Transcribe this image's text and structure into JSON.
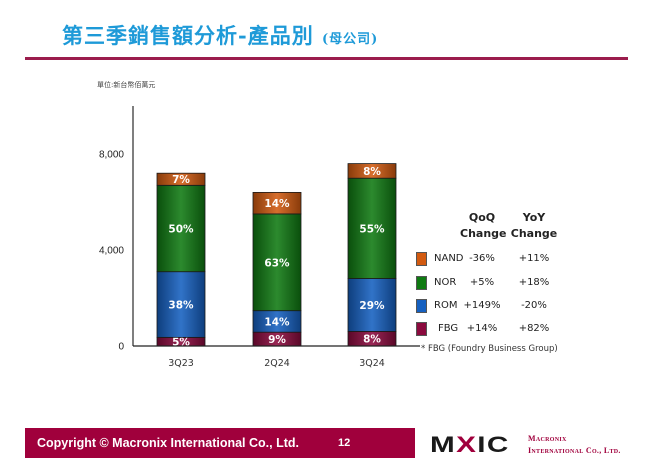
{
  "header": {
    "title": "第三季銷售額分析-產品別",
    "subtitle": "(母公司)"
  },
  "chart_data": {
    "type": "bar",
    "stacked": true,
    "unit_label": "單位:新台幣佰萬元",
    "categories": [
      "3Q23",
      "2Q24",
      "3Q24"
    ],
    "totals": [
      7200,
      6400,
      7600
    ],
    "ylim": [
      0,
      10000
    ],
    "yticks": [
      0,
      4000,
      8000
    ],
    "ytick_labels": [
      "0",
      "4,000",
      "8,000"
    ],
    "series": [
      {
        "name": "FBG",
        "color": "#8b0a3e",
        "percent": [
          5,
          9,
          8
        ],
        "labels": [
          "5%",
          "9%",
          "8%"
        ]
      },
      {
        "name": "ROM",
        "color": "#1560c0",
        "percent": [
          38,
          14,
          29
        ],
        "labels": [
          "38%",
          "14%",
          "29%"
        ]
      },
      {
        "name": "NOR",
        "color": "#0f7a12",
        "percent": [
          50,
          63,
          55
        ],
        "labels": [
          "50%",
          "63%",
          "55%"
        ]
      },
      {
        "name": "NAND",
        "color": "#d25a10",
        "percent": [
          7,
          14,
          8
        ],
        "labels": [
          "7%",
          "14%",
          "8%"
        ]
      }
    ],
    "grid": false,
    "legend_position": "right"
  },
  "legend": {
    "qoq_header_1": "QoQ",
    "qoq_header_2": "Change",
    "yoy_header_1": "YoY",
    "yoy_header_2": "Change",
    "rows": [
      {
        "name": "NAND",
        "qoq": "-36%",
        "yoy": "+11%",
        "color": "#d25a10"
      },
      {
        "name": "NOR",
        "qoq": "+5%",
        "yoy": "+18%",
        "color": "#0f7a12"
      },
      {
        "name": "ROM",
        "qoq": "+149%",
        "yoy": "-20%",
        "color": "#1560c0"
      },
      {
        "name": "FBG",
        "qoq": "+14%",
        "yoy": "+82%",
        "color": "#8b0a3e"
      }
    ],
    "footnote": "* FBG (Foundry Business Group)"
  },
  "footer": {
    "copyright": "Copyright © Macronix International Co., Ltd.",
    "page_number": "12",
    "logo_text_1": "M",
    "logo_text_x": "X",
    "logo_text_2": "IC",
    "company_line_1": "Macronix",
    "company_line_2": "International Co., Ltd."
  }
}
